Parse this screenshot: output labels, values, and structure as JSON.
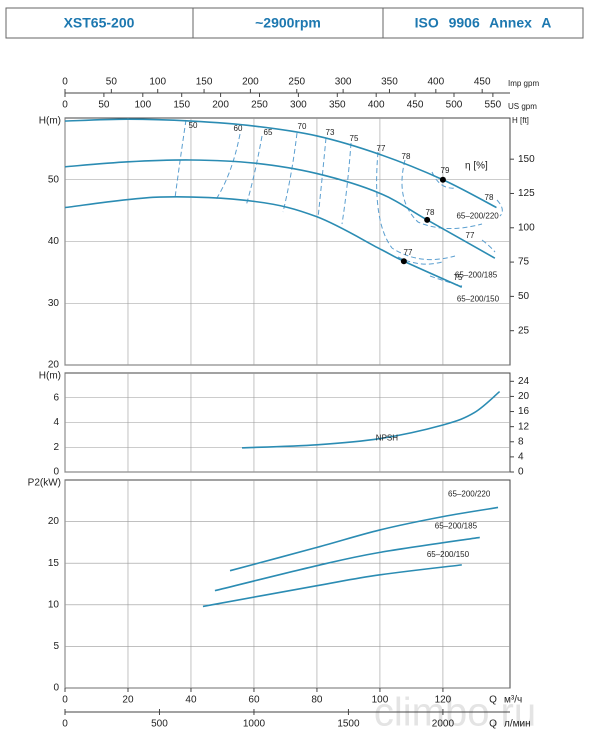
{
  "header": {
    "cells": [
      "XST65-200",
      "~2900rpm",
      "ISO 9906 Annex A"
    ]
  },
  "watermark": "climbo.ru",
  "chart_data": [
    {
      "type": "line",
      "ylabel": "H(m)",
      "y2label": "H [ft]",
      "xlim": [
        0,
        141.3
      ],
      "ylim": [
        20,
        60
      ],
      "yticks": [
        20,
        30,
        40,
        50
      ],
      "y2lim": [
        0,
        180
      ],
      "y2ticks": [
        25,
        50,
        75,
        100,
        125,
        150
      ],
      "grid": true,
      "top_axes": [
        {
          "label": "Imp gpm",
          "lim": [
            0,
            480
          ],
          "ticks": [
            0,
            50,
            100,
            150,
            200,
            250,
            300,
            350,
            400,
            450
          ]
        },
        {
          "label": "US gpm",
          "lim": [
            0,
            572
          ],
          "ticks": [
            0,
            50,
            100,
            150,
            200,
            250,
            300,
            350,
            400,
            450,
            500,
            550
          ]
        }
      ],
      "series": [
        {
          "name": "65–200/220",
          "color": "#2b8cb3",
          "x": [
            0,
            20,
            40,
            60,
            80,
            100,
            120,
            137
          ],
          "values": [
            59.5,
            59.8,
            59.5,
            58.7,
            57.1,
            54.1,
            50.0,
            45.5
          ]
        },
        {
          "name": "65–200/185",
          "color": "#2b8cb3",
          "x": [
            0,
            20,
            40,
            60,
            80,
            100,
            115,
            136.5
          ],
          "values": [
            52.1,
            52.9,
            53.2,
            52.7,
            51.0,
            47.8,
            43.5,
            37.3
          ]
        },
        {
          "name": "65–200/150",
          "color": "#2b8cb3",
          "x": [
            0,
            30,
            60,
            80,
            100,
            107.6,
            126
          ],
          "values": [
            45.5,
            47.2,
            46.5,
            44.0,
            38.8,
            36.8,
            32.6
          ]
        }
      ],
      "bep": {
        "color": "#000000",
        "x": [
          120,
          115,
          107.6
        ],
        "values": [
          50.0,
          43.5,
          36.8
        ]
      },
      "efficiency_label": "η [%]",
      "efficiency": [
        50,
        60,
        65,
        70,
        73,
        75,
        77,
        78,
        79,
        78,
        78,
        77,
        77,
        75
      ],
      "efficiency_color": "#5b9fd0"
    },
    {
      "type": "line",
      "ylabel": "H(m)",
      "xlim": [
        0,
        141.3
      ],
      "ylim": [
        0,
        8
      ],
      "yticks": [
        0,
        2,
        4,
        6
      ],
      "y2lim": [
        0,
        26.2
      ],
      "y2ticks": [
        0,
        4,
        8,
        12,
        16,
        20,
        24
      ],
      "grid": true,
      "series": [
        {
          "name": "NPSH",
          "color": "#2b8cb3",
          "x": [
            56.2,
            80,
            100,
            120,
            130,
            138
          ],
          "values": [
            1.95,
            2.2,
            2.7,
            3.8,
            4.8,
            6.5
          ]
        }
      ]
    },
    {
      "type": "line",
      "ylabel": "P2(kW)",
      "xlim": [
        0,
        141.3
      ],
      "ylim": [
        0,
        25
      ],
      "yticks": [
        0,
        5,
        10,
        15,
        20
      ],
      "xticks": [
        0,
        20,
        40,
        60,
        80,
        100,
        120
      ],
      "xlabel": "Q",
      "xunit": "м³/ч",
      "grid": true,
      "x2": {
        "label": "Q",
        "unit": "л/мин",
        "lim": [
          0,
          2355
        ],
        "ticks": [
          0,
          500,
          1000,
          1500,
          2000
        ]
      },
      "series": [
        {
          "name": "65–200/220",
          "color": "#2b8cb3",
          "x": [
            52.4,
            80,
            100,
            120,
            137.5
          ],
          "values": [
            14.1,
            16.9,
            19.0,
            20.6,
            21.7
          ]
        },
        {
          "name": "65–200/185",
          "color": "#2b8cb3",
          "x": [
            47.6,
            80,
            100,
            131.7
          ],
          "values": [
            11.7,
            14.7,
            16.3,
            18.1
          ]
        },
        {
          "name": "65–200/150",
          "color": "#2b8cb3",
          "x": [
            43.8,
            80,
            100,
            126
          ],
          "values": [
            9.8,
            12.3,
            13.6,
            14.8
          ]
        }
      ]
    }
  ]
}
